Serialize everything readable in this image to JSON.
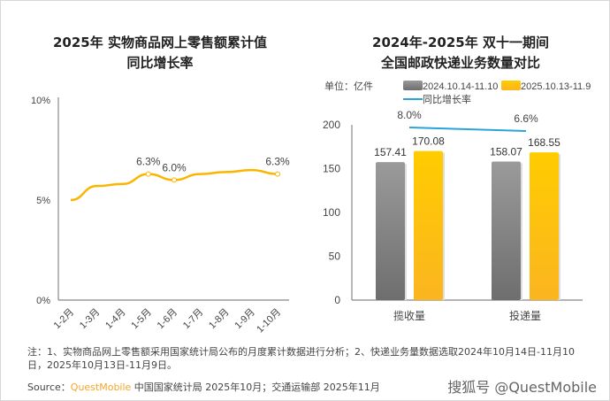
{
  "chart_data": [
    {
      "type": "line",
      "title_lines": [
        "2025年 实物商品网上零售额累计值",
        "同比增长率"
      ],
      "categories": [
        "1-2月",
        "1-3月",
        "1-4月",
        "1-5月",
        "1-6月",
        "1-7月",
        "1-8月",
        "1-9月",
        "1-10月"
      ],
      "values": [
        5.0,
        5.7,
        5.8,
        6.3,
        6.0,
        6.3,
        6.4,
        6.5,
        6.3
      ],
      "data_labels": {
        "3": "6.3%",
        "4": "6.0%",
        "8": "6.3%"
      },
      "yticks": [
        "0%",
        "5%",
        "10%"
      ],
      "ylim": [
        0,
        10
      ],
      "color": "#fbb500"
    },
    {
      "type": "bar",
      "title_lines": [
        "2024年-2025年 双十一期间",
        "全国邮政快递业务数量对比"
      ],
      "unit": "单位：亿件",
      "categories": [
        "揽收量",
        "投递量"
      ],
      "series": [
        {
          "name": "2024.10.14-11.10",
          "values": [
            157.41,
            158.07
          ],
          "color": "#8a8a8a"
        },
        {
          "name": "2025.10.13-11.9",
          "values": [
            170.08,
            168.55
          ],
          "color": "#ffc107"
        }
      ],
      "line_series": {
        "name": "同比增长率",
        "values": [
          8.0,
          6.6
        ],
        "labels": [
          "8.0%",
          "6.6%"
        ],
        "color": "#29a3dc"
      },
      "yticks": [
        0,
        50,
        100,
        150,
        200
      ],
      "ylim": [
        0,
        200
      ]
    }
  ],
  "footer": {
    "note": "注：1、实物商品网上零售额采用国家统计局公布的月度累计数据进行分析；2、快递业务量数据选取2024年10月14日-11月10日，2025年10月13日-11月9日。",
    "source_prefix": "Source：",
    "source_brand": "QuestMobile",
    "source_rest": " 中国国家统计局 2025年10月；交通运输部 2025年11月",
    "watermark": "搜狐号 @QuestMobile"
  }
}
